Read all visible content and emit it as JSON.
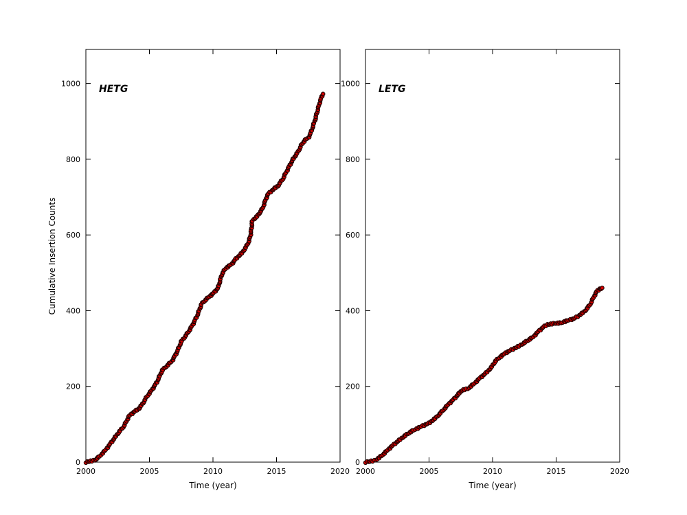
{
  "figure": {
    "background": "#ffffff",
    "axis_color": "#000000",
    "marker": {
      "fill": "#d40000",
      "edge": "#200000",
      "radius": 2.7
    }
  },
  "chart_data": [
    {
      "type": "scatter",
      "annotation": "HETG",
      "xlabel": "Time (year)",
      "ylabel": "Cumulative Insertion Counts",
      "xlim": [
        2000,
        2020
      ],
      "ylim": [
        0,
        1090
      ],
      "xticks": [
        2000,
        2005,
        2010,
        2015,
        2020
      ],
      "yticks": [
        0,
        200,
        400,
        600,
        800,
        1000
      ],
      "grid": false,
      "legend": "none",
      "points": [
        [
          2000.0,
          0
        ],
        [
          2000.7,
          5
        ],
        [
          2001.0,
          13
        ],
        [
          2001.5,
          30
        ],
        [
          2002.0,
          52
        ],
        [
          2002.5,
          75
        ],
        [
          2003.0,
          95
        ],
        [
          2003.4,
          122
        ],
        [
          2003.8,
          133
        ],
        [
          2004.2,
          142
        ],
        [
          2004.5,
          156
        ],
        [
          2004.8,
          173
        ],
        [
          2005.0,
          182
        ],
        [
          2005.3,
          196
        ],
        [
          2005.6,
          212
        ],
        [
          2006.0,
          242
        ],
        [
          2006.4,
          255
        ],
        [
          2006.8,
          268
        ],
        [
          2007.2,
          293
        ],
        [
          2007.5,
          318
        ],
        [
          2007.9,
          336
        ],
        [
          2008.2,
          351
        ],
        [
          2008.5,
          369
        ],
        [
          2008.8,
          390
        ],
        [
          2009.1,
          418
        ],
        [
          2009.4,
          428
        ],
        [
          2009.7,
          437
        ],
        [
          2010.0,
          445
        ],
        [
          2010.4,
          460
        ],
        [
          2010.7,
          496
        ],
        [
          2011.0,
          512
        ],
        [
          2011.5,
          524
        ],
        [
          2011.8,
          537
        ],
        [
          2012.3,
          553
        ],
        [
          2012.6,
          568
        ],
        [
          2012.85,
          585
        ],
        [
          2012.97,
          602
        ],
        [
          2013.1,
          638
        ],
        [
          2013.5,
          650
        ],
        [
          2013.9,
          670
        ],
        [
          2014.3,
          707
        ],
        [
          2014.8,
          722
        ],
        [
          2015.1,
          729
        ],
        [
          2015.5,
          748
        ],
        [
          2015.9,
          775
        ],
        [
          2016.3,
          800
        ],
        [
          2016.7,
          820
        ],
        [
          2017.0,
          840
        ],
        [
          2017.3,
          853
        ],
        [
          2017.5,
          856
        ],
        [
          2017.7,
          870
        ],
        [
          2018.0,
          900
        ],
        [
          2018.2,
          925
        ],
        [
          2018.4,
          950
        ],
        [
          2018.55,
          965
        ],
        [
          2018.65,
          973
        ]
      ]
    },
    {
      "type": "scatter",
      "annotation": "LETG",
      "xlabel": "Time (year)",
      "ylabel": "",
      "xlim": [
        2000,
        2020
      ],
      "ylim": [
        0,
        1090
      ],
      "xticks": [
        2000,
        2005,
        2010,
        2015,
        2020
      ],
      "yticks": [
        0,
        200,
        400,
        600,
        800,
        1000
      ],
      "grid": false,
      "legend": "none",
      "points": [
        [
          2000.0,
          0
        ],
        [
          2000.7,
          4
        ],
        [
          2001.1,
          12
        ],
        [
          2001.5,
          24
        ],
        [
          2002.0,
          40
        ],
        [
          2002.5,
          54
        ],
        [
          2003.0,
          67
        ],
        [
          2003.5,
          79
        ],
        [
          2004.0,
          88
        ],
        [
          2004.5,
          96
        ],
        [
          2005.0,
          103
        ],
        [
          2005.5,
          116
        ],
        [
          2006.0,
          133
        ],
        [
          2006.5,
          152
        ],
        [
          2007.0,
          168
        ],
        [
          2007.35,
          181
        ],
        [
          2007.6,
          190
        ],
        [
          2008.05,
          194
        ],
        [
          2008.5,
          206
        ],
        [
          2009.0,
          222
        ],
        [
          2009.5,
          236
        ],
        [
          2009.9,
          250
        ],
        [
          2010.2,
          266
        ],
        [
          2010.6,
          278
        ],
        [
          2011.0,
          288
        ],
        [
          2011.5,
          297
        ],
        [
          2012.0,
          305
        ],
        [
          2012.4,
          313
        ],
        [
          2012.8,
          322
        ],
        [
          2013.2,
          331
        ],
        [
          2013.6,
          345
        ],
        [
          2014.0,
          357
        ],
        [
          2014.3,
          363
        ],
        [
          2014.8,
          366
        ],
        [
          2015.4,
          368
        ],
        [
          2015.9,
          374
        ],
        [
          2016.4,
          379
        ],
        [
          2016.8,
          387
        ],
        [
          2017.2,
          397
        ],
        [
          2017.5,
          408
        ],
        [
          2017.75,
          421
        ],
        [
          2018.0,
          439
        ],
        [
          2018.2,
          451
        ],
        [
          2018.4,
          457
        ],
        [
          2018.65,
          459
        ]
      ]
    }
  ]
}
